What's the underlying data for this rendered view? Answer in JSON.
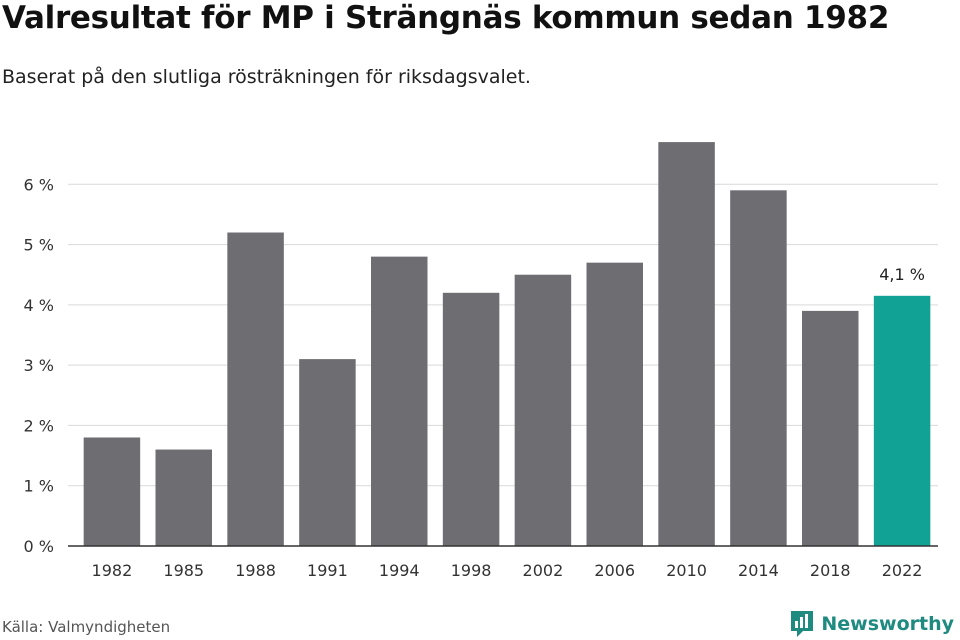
{
  "header": {
    "title": "Valresultat för MP i Strängnäs kommun sedan 1982",
    "subtitle": "Baserat på den slutliga rösträkningen för riksdagsvalet."
  },
  "footer": {
    "source": "Källa: Valmyndigheten",
    "brand": "Newsworthy",
    "brand_icon": "newsworthy-logo-icon"
  },
  "colors": {
    "bar": "#6e6d72",
    "highlight": "#11a195",
    "grid": "#d9d9d9",
    "axis": "#333333",
    "brand": "#1f8a80"
  },
  "chart_data": {
    "type": "bar",
    "categories": [
      "1982",
      "1985",
      "1988",
      "1991",
      "1994",
      "1998",
      "2002",
      "2006",
      "2010",
      "2014",
      "2018",
      "2022"
    ],
    "values": [
      1.8,
      1.6,
      5.2,
      3.1,
      4.8,
      4.2,
      4.5,
      4.7,
      6.7,
      5.9,
      3.9,
      4.15
    ],
    "highlight_index": 11,
    "data_labels": [
      {
        "index": 11,
        "text": "4,1 %"
      }
    ],
    "y_ticks": [
      0,
      1,
      2,
      3,
      4,
      5,
      6
    ],
    "y_tick_labels": [
      "0 %",
      "1 %",
      "2 %",
      "3 %",
      "4 %",
      "5 %",
      "6 %"
    ],
    "ylim": [
      0,
      7
    ],
    "grid": true,
    "legend": "none",
    "title": "Valresultat för MP i Strängnäs kommun sedan 1982",
    "xlabel": "",
    "ylabel": ""
  }
}
